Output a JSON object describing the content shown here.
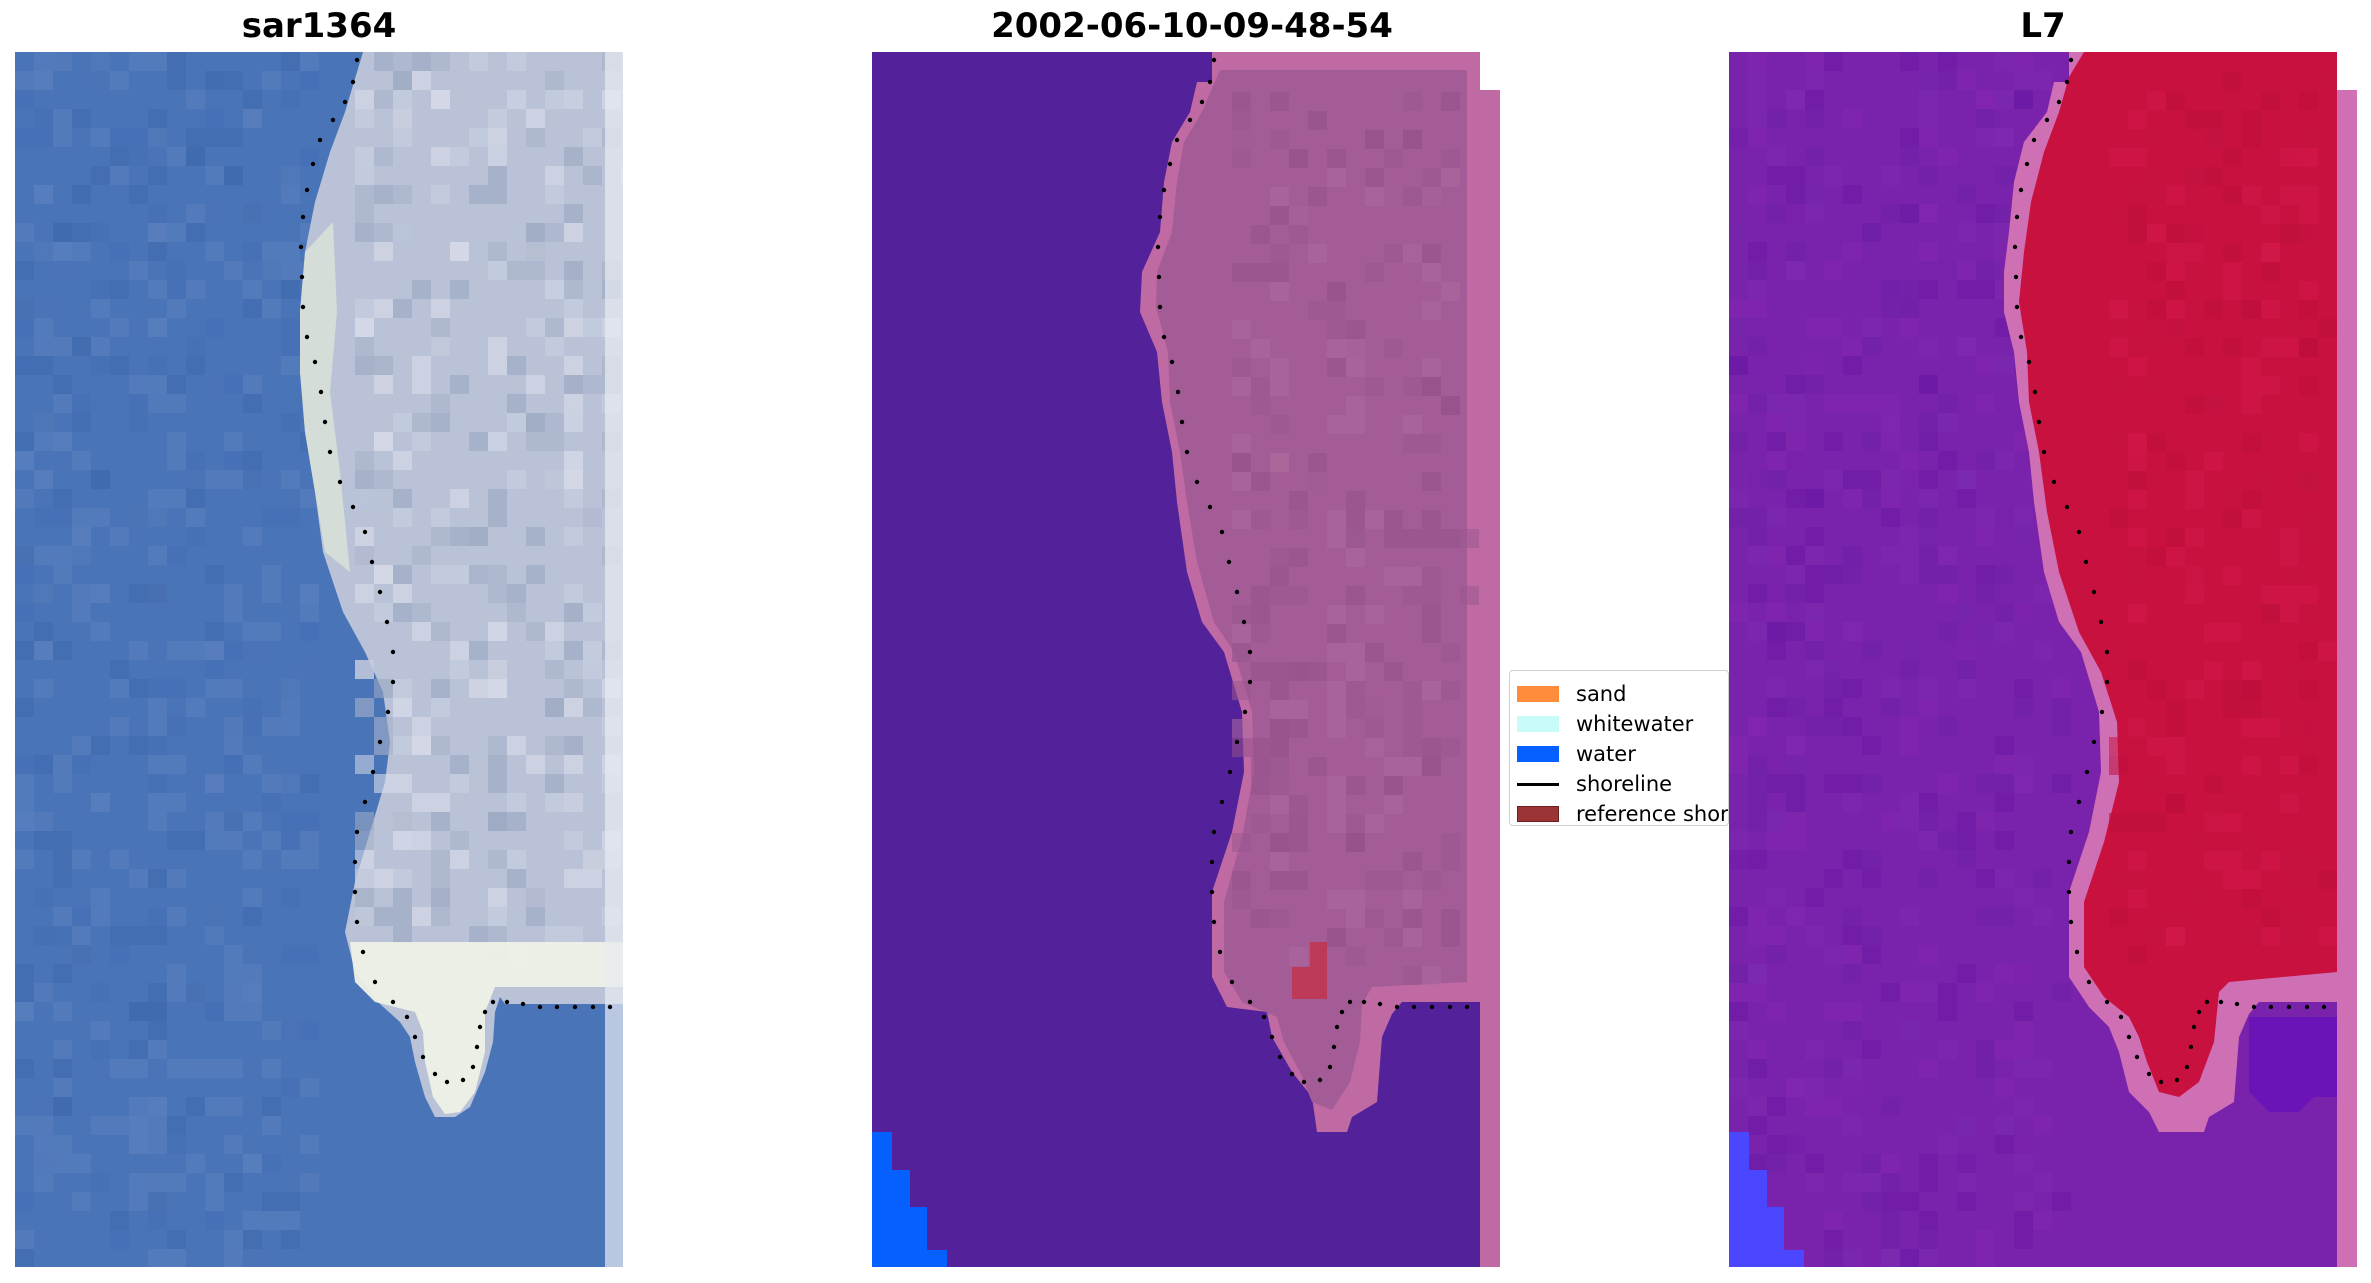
{
  "panels": [
    {
      "title": "sar1364"
    },
    {
      "title": "2002-06-10-09-48-54"
    },
    {
      "title": "L7"
    }
  ],
  "legend": {
    "items": [
      {
        "label": "sand",
        "color": "#ff8c3a",
        "kind": "patch"
      },
      {
        "label": "whitewater",
        "color": "#c8fbf9",
        "kind": "patch"
      },
      {
        "label": "water",
        "color": "#0560ff",
        "kind": "patch"
      },
      {
        "label": "shoreline",
        "color": "#000000",
        "kind": "line"
      },
      {
        "label": "reference shoreline",
        "color": "#9b3434",
        "kind": "patch"
      }
    ]
  },
  "colors": {
    "ocean_rgb": "#4a74b8",
    "land_rgb": "#b9c2d6",
    "beach_rgb": "#e7eadf",
    "ocean_class": "#53229a",
    "land_class": "#a35c95",
    "edge_class": "#bf6aa2",
    "reference_class": "#bc3a57",
    "water_class": "#0560ff",
    "ocean_index": "#7922ab",
    "land_index": "#c8113e",
    "edge_index": "#d070b4",
    "water_index": "#4b46ff"
  }
}
